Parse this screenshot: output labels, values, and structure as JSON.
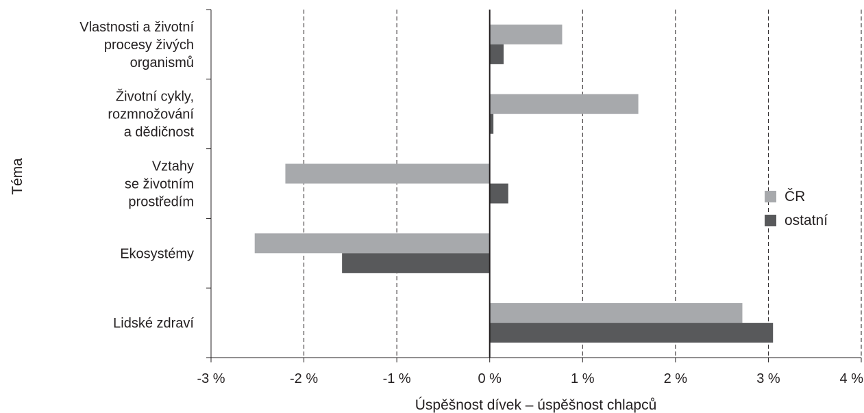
{
  "chart_data": {
    "type": "bar",
    "orientation": "horizontal",
    "categories": [
      [
        "Vlastnosti a životní",
        "procesy živých",
        "organismů"
      ],
      [
        "Životní cykly,",
        "rozmnožování",
        "a dědičnost"
      ],
      [
        "Vztahy",
        "se životním",
        "prostředím"
      ],
      [
        "Ekosystémy"
      ],
      [
        "Lidské zdraví"
      ]
    ],
    "series": [
      {
        "name": "ČR",
        "color": "#a7a9ac",
        "values": [
          0.78,
          1.6,
          -2.2,
          -2.53,
          2.72
        ]
      },
      {
        "name": "ostatní",
        "color": "#58595b",
        "values": [
          0.15,
          0.04,
          0.2,
          -1.59,
          3.05
        ]
      }
    ],
    "xlim": [
      -3,
      4
    ],
    "xticks": [
      -3,
      -2,
      -1,
      0,
      1,
      2,
      3,
      4
    ],
    "xtick_labels": [
      "-3 %",
      "-2 %",
      "-1 %",
      "0 %",
      "1 %",
      "2 %",
      "3 %",
      "4 %"
    ],
    "xlabel": "Úspěšnost dívek – úspěšnost chlapců",
    "ylabel": "Téma",
    "grid": "vertical dashed",
    "legend": "right"
  }
}
